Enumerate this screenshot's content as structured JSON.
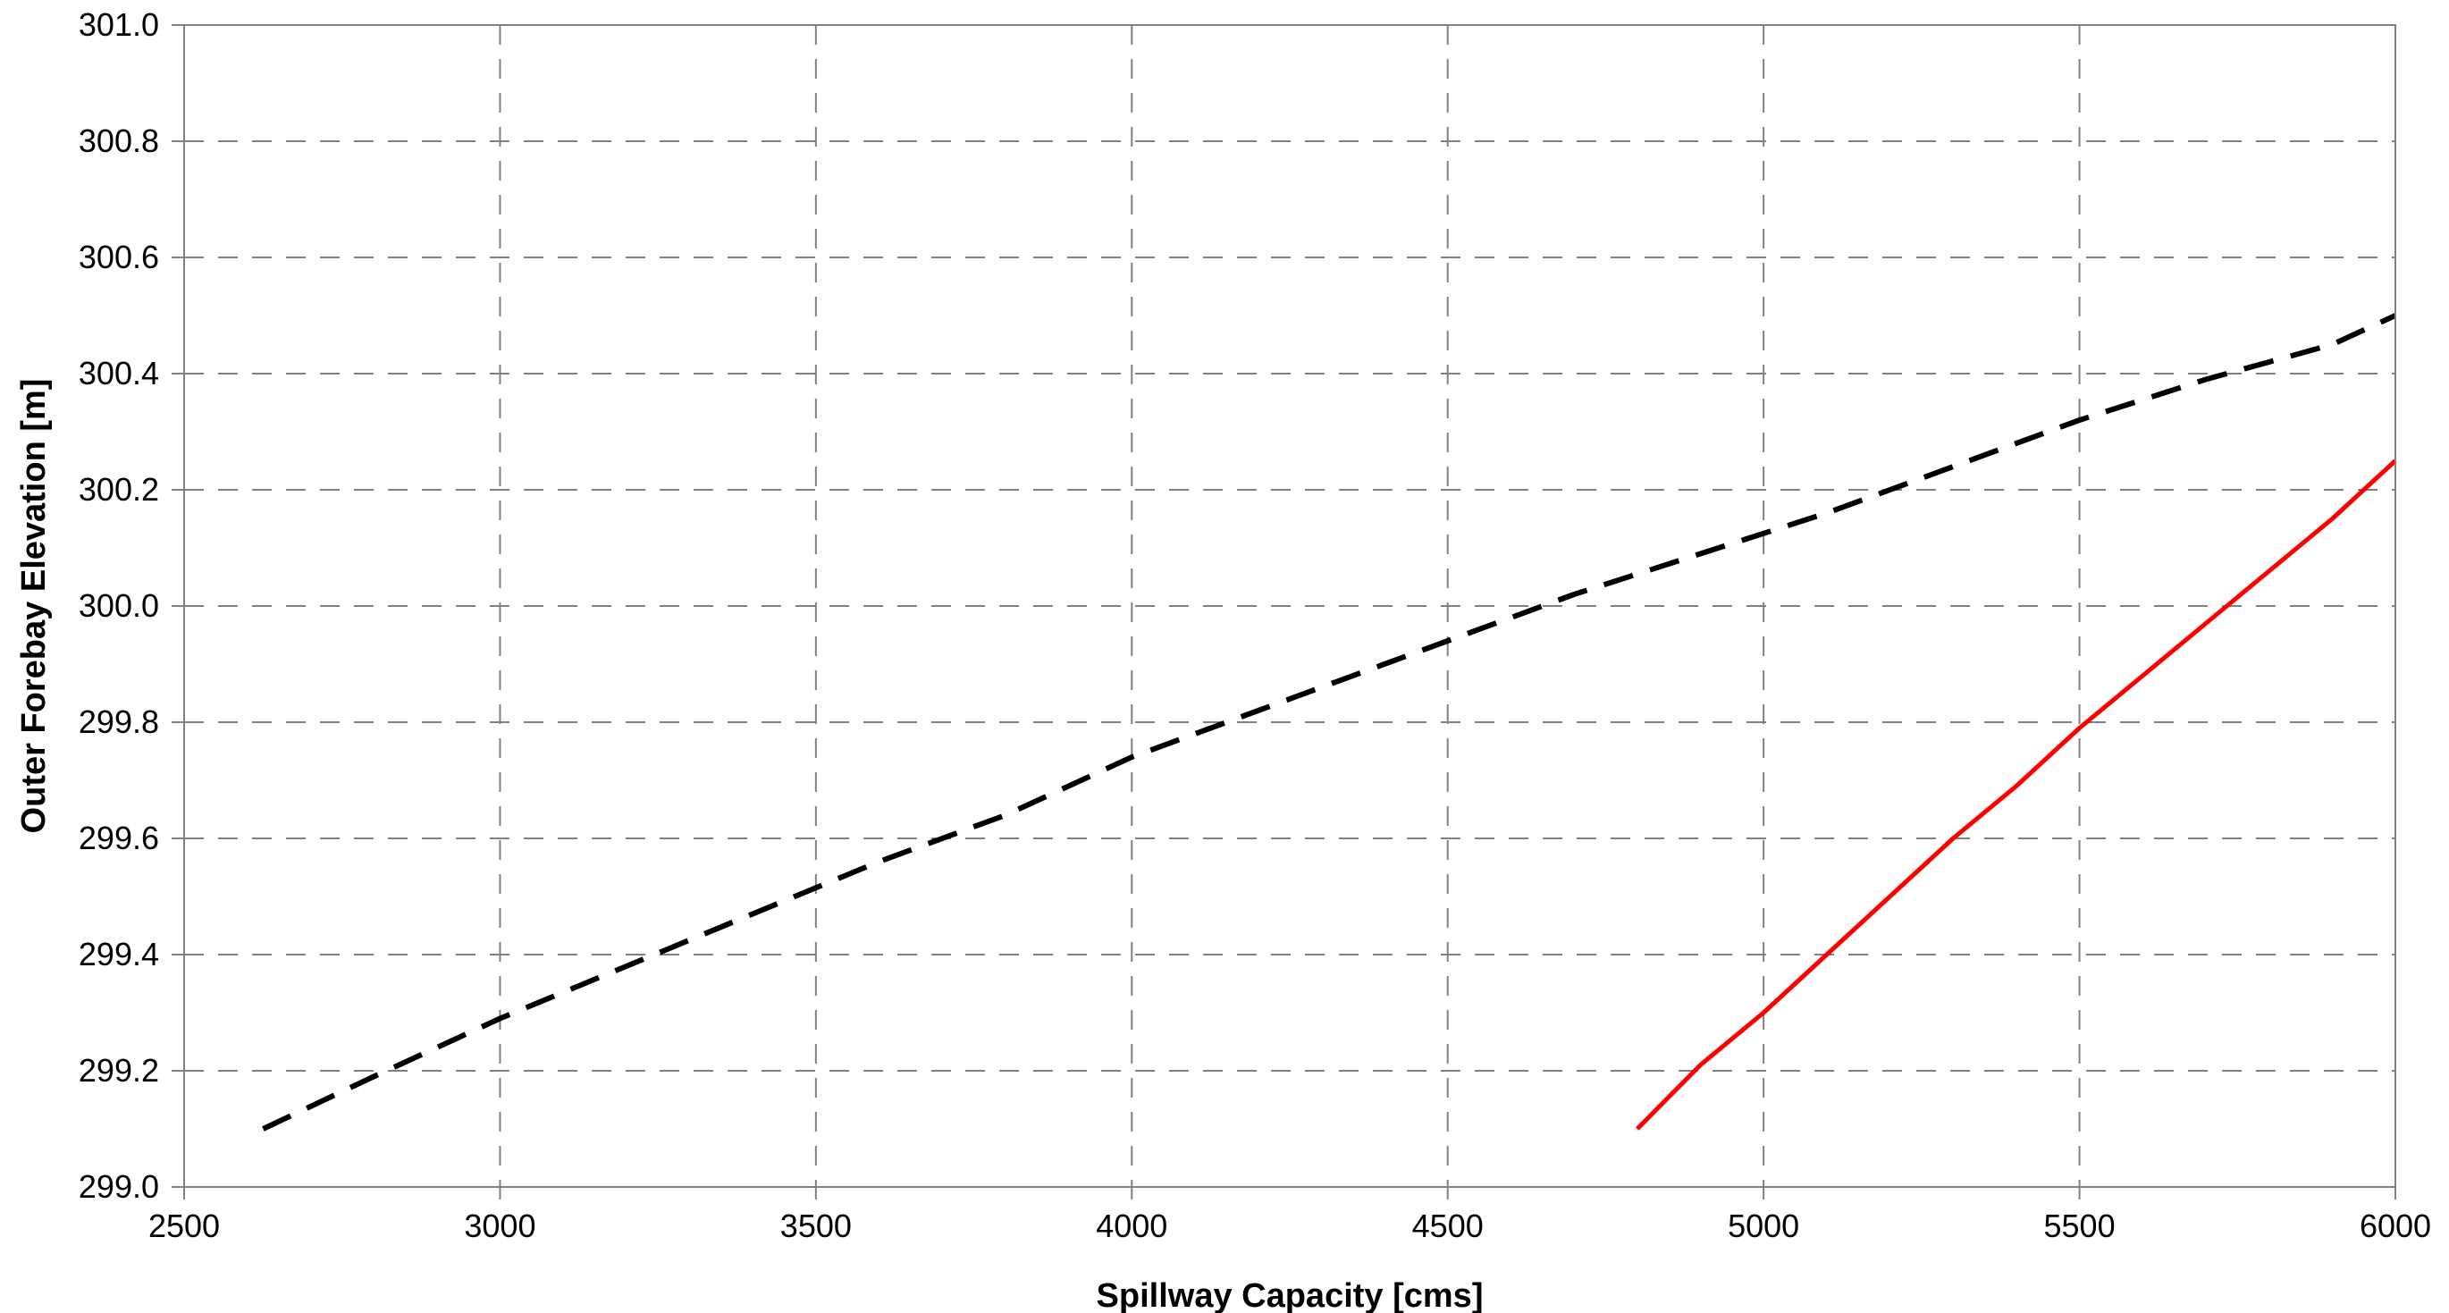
{
  "chart_data": {
    "type": "line",
    "title": "",
    "xlabel": "Spillway Capacity [cms]",
    "ylabel": "Outer Forebay Elevation [m]",
    "xlim": [
      2500,
      6000
    ],
    "ylim": [
      299.0,
      301.0
    ],
    "x_ticks": [
      2500,
      3000,
      3500,
      4000,
      4500,
      5000,
      5500,
      6000
    ],
    "x_tick_labels": [
      "2500",
      "3000",
      "3500",
      "4000",
      "4500",
      "5000",
      "5500",
      "6000"
    ],
    "y_ticks": [
      299.0,
      299.2,
      299.4,
      299.6,
      299.8,
      300.0,
      300.2,
      300.4,
      300.6,
      300.8,
      301.0
    ],
    "y_tick_labels": [
      "299.0",
      "299.2",
      "299.4",
      "299.6",
      "299.8",
      "300.0",
      "300.2",
      "300.4",
      "300.6",
      "300.8",
      "301.0"
    ],
    "grid": true,
    "legend": "none",
    "series": [
      {
        "color": "#000000",
        "style": "dashed",
        "x": [
          2625,
          2800,
          3000,
          3200,
          3400,
          3600,
          3800,
          4000,
          4100,
          4200,
          4400,
          4500,
          4700,
          4900,
          5100,
          5300,
          5500,
          5700,
          5900,
          6000
        ],
        "y": [
          299.1,
          299.19,
          299.29,
          299.38,
          299.47,
          299.56,
          299.64,
          299.74,
          299.78,
          299.82,
          299.9,
          299.94,
          300.02,
          300.09,
          300.16,
          300.24,
          300.32,
          300.39,
          300.45,
          300.5
        ]
      },
      {
        "color": "#ff0000",
        "style": "solid",
        "x": [
          4800,
          4900,
          5000,
          5100,
          5200,
          5300,
          5400,
          5500,
          5600,
          5700,
          5800,
          5900,
          6000
        ],
        "y": [
          299.1,
          299.21,
          299.3,
          299.4,
          299.5,
          299.6,
          299.69,
          299.79,
          299.88,
          299.97,
          300.06,
          300.15,
          300.25
        ]
      }
    ]
  }
}
